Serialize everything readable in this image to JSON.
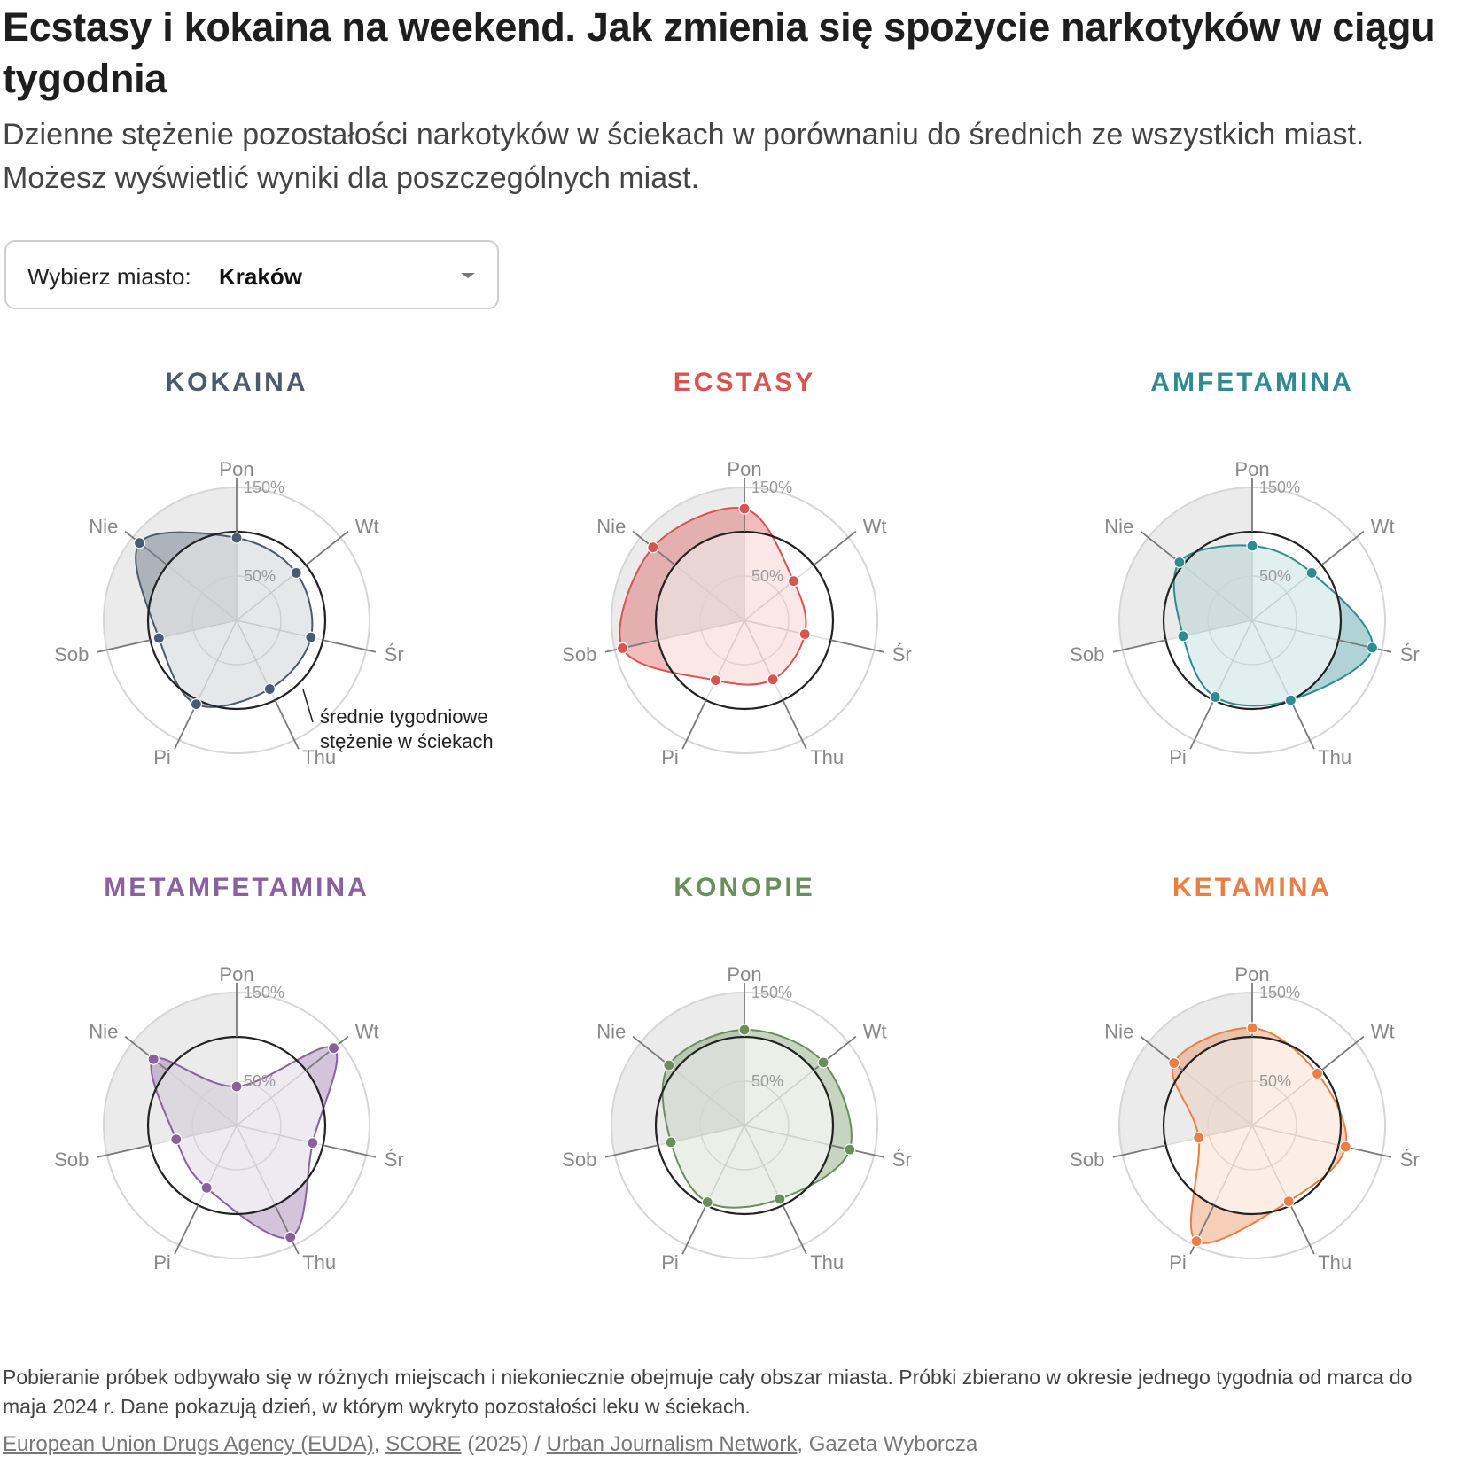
{
  "title": "Ecstasy i kokaina na weekend. Jak zmienia się spożycie narkotyków w ciągu tygodnia",
  "subtitle": "Dzienne stężenie pozostałości narkotyków w ściekach w porównaniu do średnich ze wszystkich miast. Możesz wyświetlić wyniki dla poszczególnych miast.",
  "selector": {
    "label": "Wybierz miasto:",
    "value": "Kraków"
  },
  "annotation": "średnie tygodniowe stężenie w ściekach",
  "footer": {
    "note": "Pobieranie próbek odbywało się w różnych miejscach i niekoniecznie obejmuje cały obszar miasta. Próbki zbierano w okresie jednego tygodnia od marca do maja 2024 r. Dane pokazują dzień, w którym wykryto pozostałości leku w ściekach.",
    "source_link_1": "European Union Drugs Agency (EUDA)",
    "sep_1": ", ",
    "source_link_2": "SCORE",
    "sep_2": " (2025) / ",
    "source_link_3": "Urban Journalism Network",
    "sep_3": ", Gazeta Wyborcza"
  },
  "chart_data": {
    "type": "radar",
    "days": [
      "Pon",
      "Wt",
      "Śr",
      "Thu",
      "Pi",
      "Sob",
      "Nie"
    ],
    "ring_labels": [
      "50%",
      "150%"
    ],
    "rmax": 150,
    "reference": 100,
    "weekend_shaded": [
      "Sob",
      "Nie"
    ],
    "charts": [
      {
        "name": "KOKAINA",
        "color": "#4a5a70",
        "values": [
          93,
          86,
          86,
          86,
          105,
          90,
          140
        ]
      },
      {
        "name": "ECSTASY",
        "color": "#d9534f",
        "values": [
          126,
          71,
          70,
          74,
          75,
          141,
          132
        ]
      },
      {
        "name": "AMFETAMINA",
        "color": "#2e8b93",
        "values": [
          84,
          86,
          139,
          100,
          96,
          80,
          105
        ]
      },
      {
        "name": "METAMFETAMINA",
        "color": "#8b60a0",
        "values": [
          44,
          140,
          88,
          140,
          78,
          70,
          120
        ]
      },
      {
        "name": "KONOPIE",
        "color": "#6a8f5c",
        "values": [
          108,
          114,
          122,
          92,
          96,
          85,
          109
        ]
      },
      {
        "name": "KETAMINA",
        "color": "#ea7e45",
        "values": [
          110,
          94,
          108,
          95,
          145,
          62,
          113
        ]
      }
    ]
  }
}
